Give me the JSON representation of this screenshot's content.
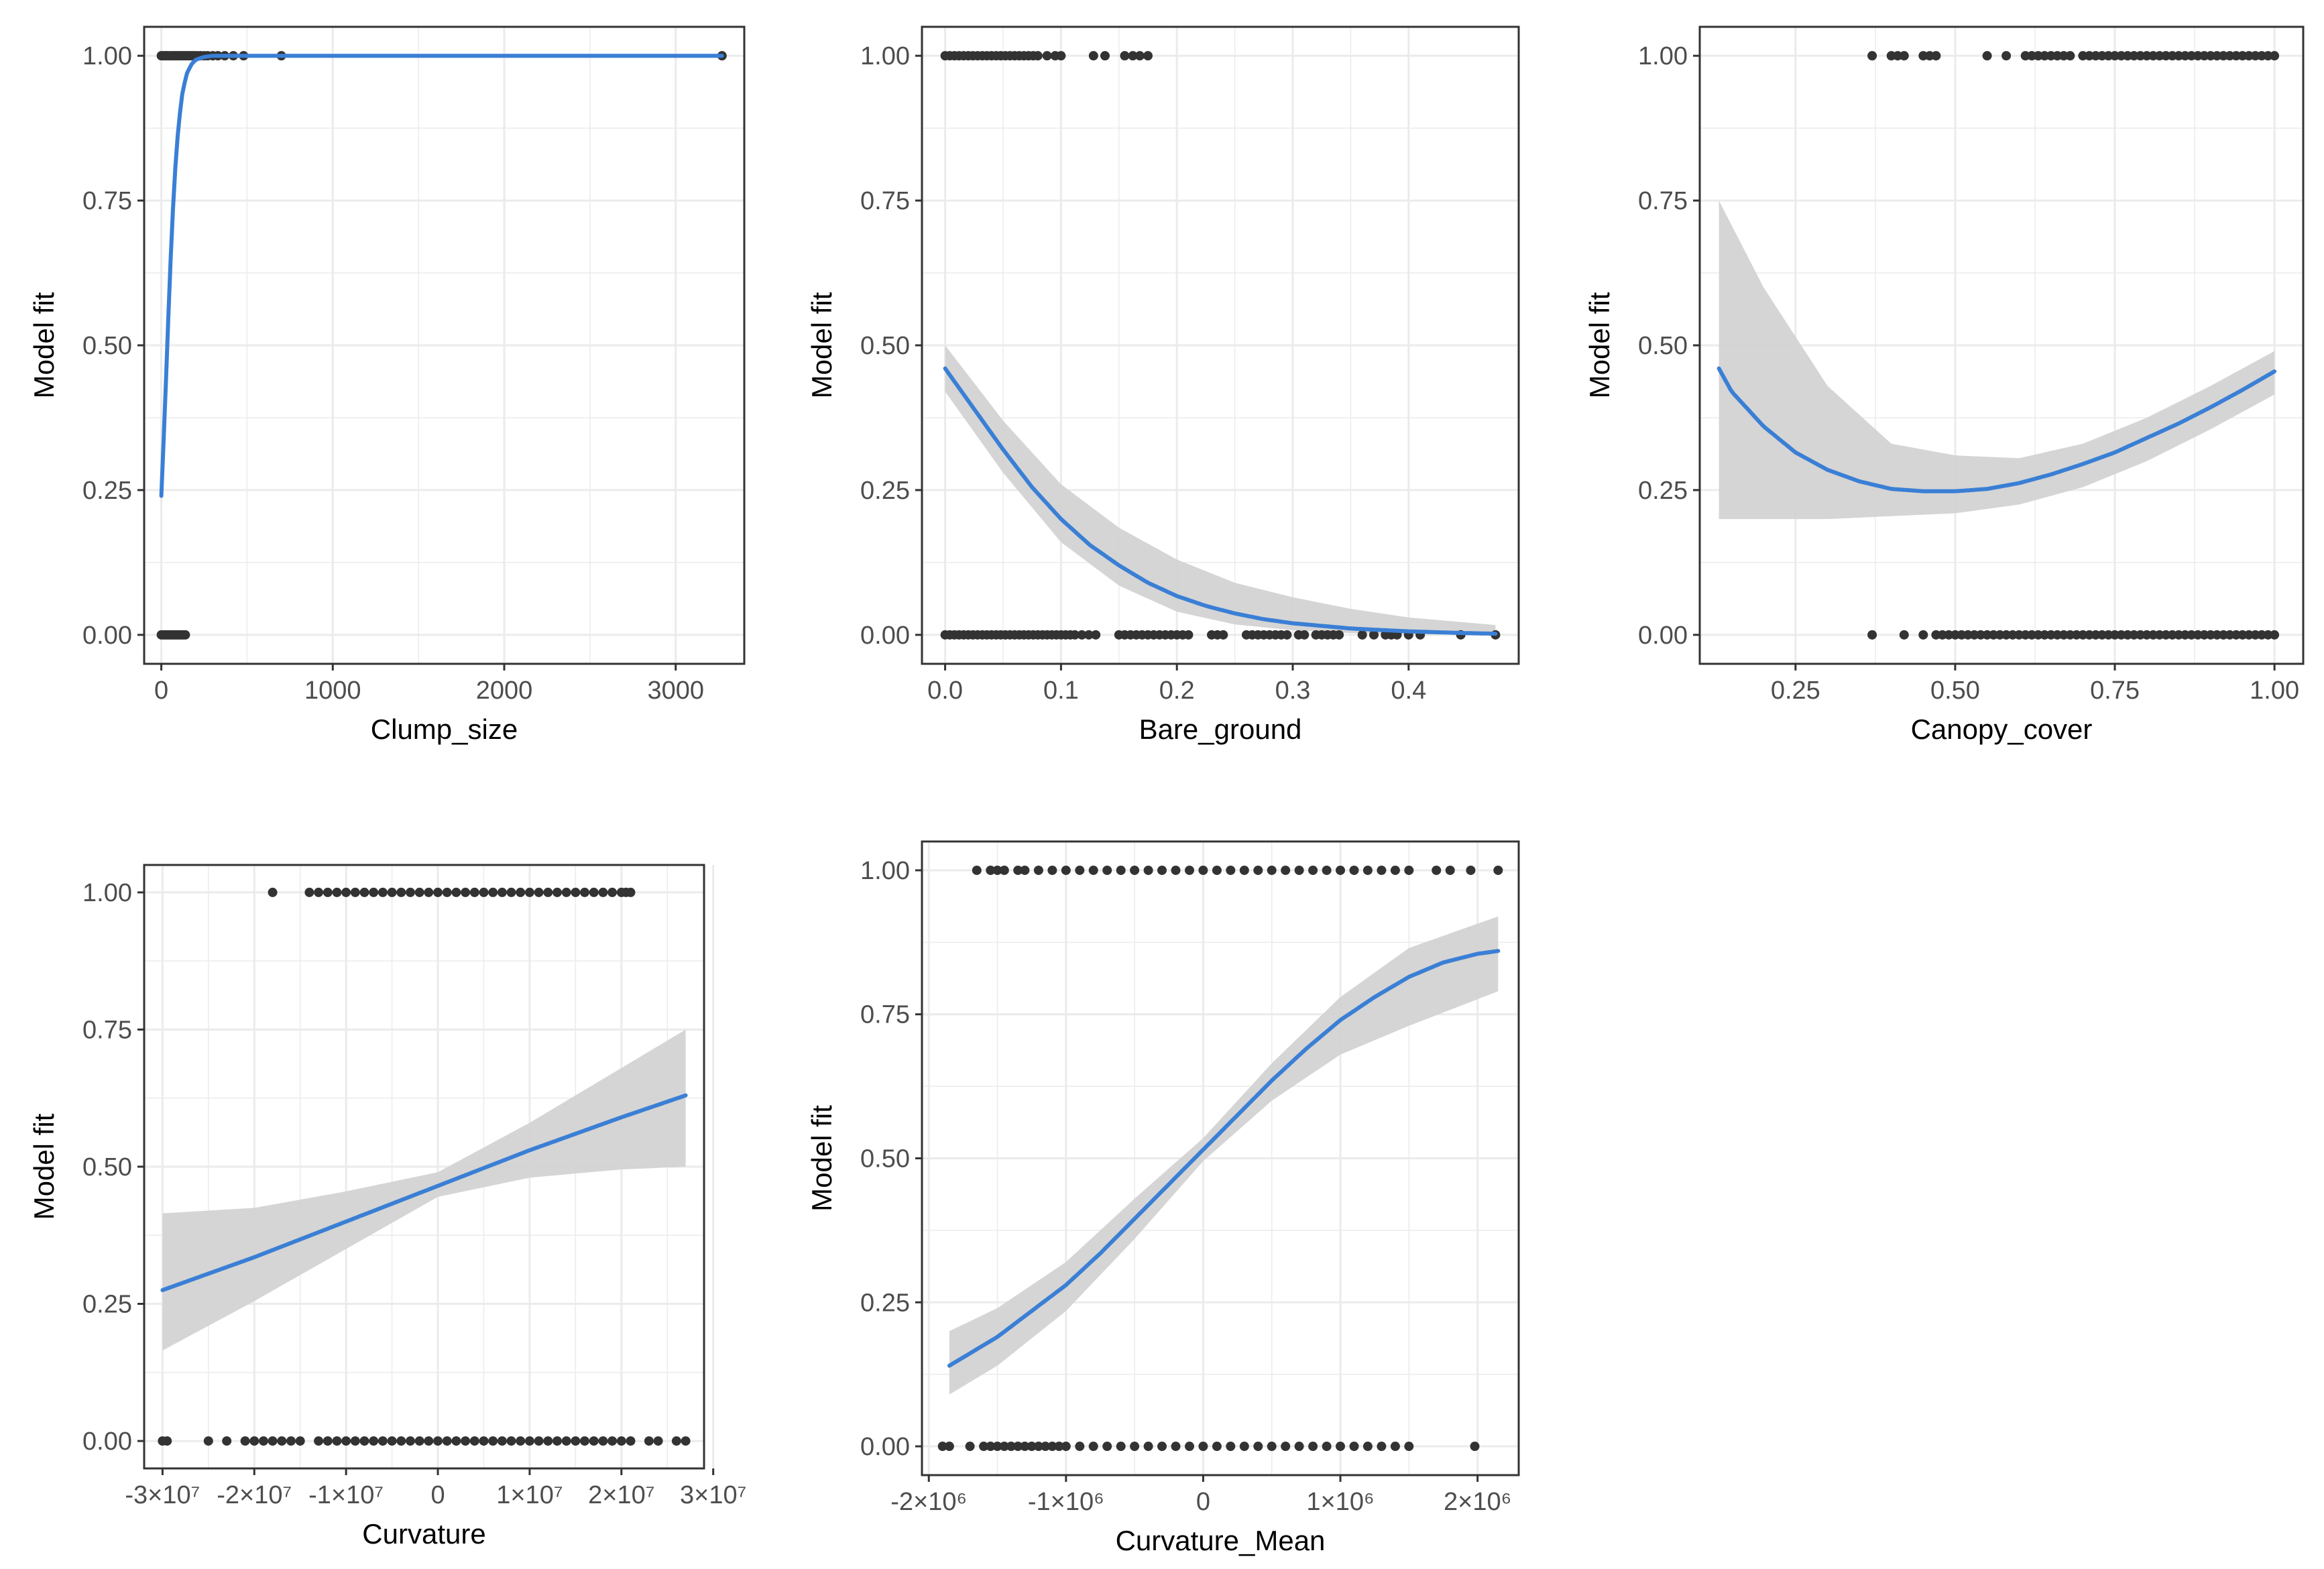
{
  "figure": {
    "background": "#ffffff",
    "line_color": "#3a7fd5",
    "ribbon_color": "#d3d3d3",
    "point_color": "#333333",
    "grid_color": "#ebebeb"
  },
  "chart_data": [
    {
      "id": "clump",
      "type": "line",
      "subtype": "logistic regression fit with confidence band and observed points",
      "xlabel": "Clump_size",
      "ylabel": "Model fit",
      "xlim": [
        -100,
        3400
      ],
      "ylim": [
        -0.05,
        1.05
      ],
      "xticks": [
        0,
        1000,
        2000,
        3000
      ],
      "xtick_labels": [
        "0",
        "1000",
        "2000",
        "3000"
      ],
      "yticks": [
        0,
        0.25,
        0.5,
        0.75,
        1
      ],
      "ytick_labels": [
        "0.00",
        "0.25",
        "0.50",
        "0.75",
        "1.00"
      ],
      "fit": {
        "x": [
          0,
          25,
          50,
          75,
          100,
          125,
          150,
          175,
          200,
          250,
          300,
          400,
          600,
          1000,
          2000,
          3270
        ],
        "y": [
          0.24,
          0.42,
          0.62,
          0.78,
          0.88,
          0.94,
          0.97,
          0.985,
          0.993,
          0.998,
          1.0,
          1.0,
          1.0,
          1.0,
          1.0,
          1.0
        ]
      },
      "ribbon": {
        "x": [
          0,
          50,
          100,
          150,
          200,
          300,
          3270
        ],
        "lower": [
          0.22,
          0.6,
          0.87,
          0.965,
          0.99,
          1.0,
          1.0
        ],
        "upper": [
          0.26,
          0.64,
          0.89,
          0.975,
          0.995,
          1.0,
          1.0
        ]
      },
      "points_y1": [
        0,
        10,
        20,
        30,
        40,
        50,
        60,
        70,
        80,
        90,
        100,
        110,
        120,
        130,
        140,
        150,
        160,
        170,
        180,
        190,
        200,
        215,
        230,
        250,
        270,
        300,
        330,
        370,
        420,
        480,
        700,
        3270
      ],
      "points_y0": [
        0,
        10,
        20,
        30,
        40,
        50,
        60,
        70,
        80,
        90,
        100,
        110,
        120,
        130,
        140
      ]
    },
    {
      "id": "bare",
      "type": "line",
      "subtype": "logistic regression fit with confidence band and observed points",
      "xlabel": "Bare_ground",
      "ylabel": "Model fit",
      "xlim": [
        -0.02,
        0.495
      ],
      "ylim": [
        -0.05,
        1.05
      ],
      "xticks": [
        0,
        0.1,
        0.2,
        0.3,
        0.4
      ],
      "xtick_labels": [
        "0.0",
        "0.1",
        "0.2",
        "0.3",
        "0.4"
      ],
      "yticks": [
        0,
        0.25,
        0.5,
        0.75,
        1
      ],
      "ytick_labels": [
        "0.00",
        "0.25",
        "0.50",
        "0.75",
        "1.00"
      ],
      "fit": {
        "x": [
          0,
          0.025,
          0.05,
          0.075,
          0.1,
          0.125,
          0.15,
          0.175,
          0.2,
          0.225,
          0.25,
          0.275,
          0.3,
          0.35,
          0.4,
          0.45,
          0.475
        ],
        "y": [
          0.46,
          0.39,
          0.32,
          0.255,
          0.2,
          0.155,
          0.12,
          0.09,
          0.067,
          0.05,
          0.037,
          0.027,
          0.02,
          0.011,
          0.006,
          0.003,
          0.002
        ]
      },
      "ribbon": {
        "x": [
          0,
          0.05,
          0.1,
          0.15,
          0.2,
          0.25,
          0.3,
          0.35,
          0.4,
          0.475
        ],
        "lower": [
          0.42,
          0.28,
          0.16,
          0.085,
          0.04,
          0.018,
          0.008,
          0.003,
          0.001,
          0.0
        ],
        "upper": [
          0.5,
          0.37,
          0.26,
          0.185,
          0.13,
          0.09,
          0.065,
          0.045,
          0.03,
          0.017
        ]
      },
      "points_y1": [
        0,
        0.004,
        0.008,
        0.012,
        0.016,
        0.02,
        0.024,
        0.028,
        0.032,
        0.036,
        0.04,
        0.044,
        0.048,
        0.052,
        0.056,
        0.06,
        0.064,
        0.068,
        0.072,
        0.076,
        0.08,
        0.088,
        0.095,
        0.1,
        0.128,
        0.138,
        0.155,
        0.162,
        0.168,
        0.175
      ],
      "points_y0": [
        0,
        0.004,
        0.008,
        0.012,
        0.016,
        0.02,
        0.024,
        0.028,
        0.032,
        0.036,
        0.04,
        0.044,
        0.048,
        0.052,
        0.056,
        0.06,
        0.064,
        0.068,
        0.072,
        0.076,
        0.08,
        0.084,
        0.088,
        0.092,
        0.096,
        0.1,
        0.104,
        0.108,
        0.112,
        0.118,
        0.124,
        0.13,
        0.15,
        0.155,
        0.16,
        0.165,
        0.17,
        0.175,
        0.18,
        0.185,
        0.19,
        0.195,
        0.2,
        0.205,
        0.21,
        0.23,
        0.235,
        0.24,
        0.26,
        0.265,
        0.27,
        0.275,
        0.28,
        0.285,
        0.29,
        0.295,
        0.305,
        0.31,
        0.32,
        0.325,
        0.33,
        0.335,
        0.34,
        0.36,
        0.37,
        0.38,
        0.385,
        0.39,
        0.4,
        0.41,
        0.445,
        0.475
      ]
    },
    {
      "id": "canopy",
      "type": "line",
      "subtype": "logistic regression fit with confidence band and observed points",
      "xlabel": "Canopy_cover",
      "ylabel": "Model fit",
      "xlim": [
        0.1,
        1.045
      ],
      "ylim": [
        -0.05,
        1.05
      ],
      "xticks": [
        0.25,
        0.5,
        0.75,
        1
      ],
      "xtick_labels": [
        "0.25",
        "0.50",
        "0.75",
        "1.00"
      ],
      "yticks": [
        0,
        0.25,
        0.5,
        0.75,
        1
      ],
      "ytick_labels": [
        "0.00",
        "0.25",
        "0.50",
        "0.75",
        "1.00"
      ],
      "fit": {
        "x": [
          0.13,
          0.15,
          0.2,
          0.25,
          0.3,
          0.35,
          0.4,
          0.45,
          0.5,
          0.55,
          0.6,
          0.65,
          0.7,
          0.75,
          0.8,
          0.85,
          0.9,
          0.95,
          1.0
        ],
        "y": [
          0.46,
          0.42,
          0.36,
          0.315,
          0.285,
          0.265,
          0.252,
          0.248,
          0.248,
          0.252,
          0.262,
          0.277,
          0.295,
          0.315,
          0.34,
          0.365,
          0.393,
          0.423,
          0.455
        ]
      },
      "ribbon": {
        "x": [
          0.13,
          0.2,
          0.3,
          0.4,
          0.5,
          0.6,
          0.7,
          0.8,
          0.9,
          1.0
        ],
        "lower": [
          0.2,
          0.2,
          0.2,
          0.205,
          0.21,
          0.225,
          0.255,
          0.3,
          0.355,
          0.415
        ],
        "upper": [
          0.75,
          0.6,
          0.43,
          0.33,
          0.31,
          0.305,
          0.33,
          0.375,
          0.43,
          0.49
        ]
      },
      "points_y1": [
        0.37,
        0.4,
        0.41,
        0.42,
        0.45,
        0.46,
        0.47,
        0.55,
        0.58,
        0.61,
        0.62,
        0.63,
        0.64,
        0.65,
        0.66,
        0.67,
        0.68,
        0.7,
        0.71,
        0.72,
        0.73,
        0.74,
        0.75,
        0.76,
        0.77,
        0.78,
        0.79,
        0.8,
        0.81,
        0.82,
        0.83,
        0.84,
        0.85,
        0.86,
        0.87,
        0.88,
        0.89,
        0.9,
        0.91,
        0.92,
        0.93,
        0.94,
        0.95,
        0.96,
        0.97,
        0.98,
        0.99,
        1.0
      ],
      "points_y0": [
        0.37,
        0.42,
        0.45,
        0.47,
        0.48,
        0.49,
        0.5,
        0.51,
        0.52,
        0.53,
        0.54,
        0.55,
        0.56,
        0.57,
        0.58,
        0.59,
        0.6,
        0.61,
        0.62,
        0.63,
        0.64,
        0.65,
        0.66,
        0.67,
        0.68,
        0.69,
        0.7,
        0.71,
        0.72,
        0.73,
        0.74,
        0.75,
        0.76,
        0.77,
        0.78,
        0.79,
        0.8,
        0.81,
        0.82,
        0.83,
        0.84,
        0.85,
        0.86,
        0.87,
        0.88,
        0.89,
        0.9,
        0.91,
        0.92,
        0.93,
        0.94,
        0.95,
        0.96,
        0.97,
        0.98,
        0.99,
        1.0
      ]
    },
    {
      "id": "curvature",
      "type": "line",
      "subtype": "logistic regression fit with confidence band and observed points",
      "xlabel": "Curvature",
      "ylabel": "Model fit",
      "xlim": [
        -32000000,
        29000000
      ],
      "ylim": [
        -0.05,
        1.05
      ],
      "xticks": [
        -30000000,
        -20000000,
        -10000000,
        0,
        10000000,
        20000000,
        30000000
      ],
      "xtick_labels": [
        "-3×10⁷",
        "-2×10⁷",
        "-1×10⁷",
        "0",
        "1×10⁷",
        "2×10⁷",
        "3×10⁷"
      ],
      "yticks": [
        0,
        0.25,
        0.5,
        0.75,
        1
      ],
      "ytick_labels": [
        "0.00",
        "0.25",
        "0.50",
        "0.75",
        "1.00"
      ],
      "fit": {
        "x": [
          -30000000,
          -20000000,
          -10000000,
          0,
          10000000,
          20000000,
          27000000
        ],
        "y": [
          0.275,
          0.335,
          0.4,
          0.465,
          0.53,
          0.59,
          0.63
        ]
      },
      "ribbon": {
        "x": [
          -30000000,
          -20000000,
          -10000000,
          0,
          10000000,
          20000000,
          27000000
        ],
        "lower": [
          0.165,
          0.255,
          0.35,
          0.445,
          0.48,
          0.495,
          0.5
        ],
        "upper": [
          0.415,
          0.425,
          0.455,
          0.49,
          0.58,
          0.68,
          0.75
        ]
      },
      "points_y1": [
        -18000000,
        -14000000,
        -13000000,
        -12000000,
        -11000000,
        -10000000,
        -9000000,
        -8000000,
        -7000000,
        -6000000,
        -5000000,
        -4000000,
        -3000000,
        -2000000,
        -1000000,
        0,
        1000000,
        2000000,
        3000000,
        4000000,
        5000000,
        6000000,
        7000000,
        8000000,
        9000000,
        10000000,
        11000000,
        12000000,
        13000000,
        14000000,
        15000000,
        16000000,
        17000000,
        18000000,
        19000000,
        20000000,
        20500000,
        21000000
      ],
      "points_y0": [
        -30000000,
        -29500000,
        -25000000,
        -23000000,
        -21000000,
        -20000000,
        -19000000,
        -18000000,
        -17000000,
        -16000000,
        -15000000,
        -13000000,
        -12000000,
        -11000000,
        -10000000,
        -9000000,
        -8000000,
        -7000000,
        -6000000,
        -5000000,
        -4000000,
        -3000000,
        -2000000,
        -1000000,
        0,
        1000000,
        2000000,
        3000000,
        4000000,
        5000000,
        6000000,
        7000000,
        8000000,
        9000000,
        10000000,
        11000000,
        12000000,
        13000000,
        14000000,
        15000000,
        16000000,
        17000000,
        18000000,
        19000000,
        20000000,
        21000000,
        23000000,
        24000000,
        26000000,
        27000000
      ]
    },
    {
      "id": "curvature-mean",
      "type": "line",
      "subtype": "logistic regression fit with confidence band and observed points",
      "xlabel": "Curvature_Mean",
      "ylabel": "Model fit",
      "xlim": [
        -2050000,
        2300000
      ],
      "ylim": [
        -0.05,
        1.05
      ],
      "xticks": [
        -2000000,
        -1000000,
        0,
        1000000,
        2000000
      ],
      "xtick_labels": [
        "-2×10⁶",
        "-1×10⁶",
        "0",
        "1×10⁶",
        "2×10⁶"
      ],
      "yticks": [
        0,
        0.25,
        0.5,
        0.75,
        1
      ],
      "ytick_labels": [
        "0.00",
        "0.25",
        "0.50",
        "0.75",
        "1.00"
      ],
      "fit": {
        "x": [
          -1850000,
          -1500000,
          -1250000,
          -1000000,
          -750000,
          -500000,
          -250000,
          0,
          250000,
          500000,
          750000,
          1000000,
          1250000,
          1500000,
          1750000,
          2000000,
          2150000
        ],
        "y": [
          0.14,
          0.19,
          0.235,
          0.28,
          0.335,
          0.395,
          0.455,
          0.515,
          0.575,
          0.635,
          0.69,
          0.74,
          0.78,
          0.815,
          0.84,
          0.855,
          0.86
        ]
      },
      "ribbon": {
        "x": [
          -1850000,
          -1500000,
          -1000000,
          -500000,
          0,
          500000,
          1000000,
          1500000,
          2150000
        ],
        "lower": [
          0.09,
          0.14,
          0.235,
          0.36,
          0.495,
          0.6,
          0.68,
          0.73,
          0.79
        ],
        "upper": [
          0.2,
          0.24,
          0.32,
          0.43,
          0.535,
          0.665,
          0.78,
          0.865,
          0.92
        ]
      },
      "points_y1": [
        -1650000,
        -1550000,
        -1500000,
        -1450000,
        -1350000,
        -1300000,
        -1200000,
        -1100000,
        -1000000,
        -900000,
        -800000,
        -700000,
        -600000,
        -500000,
        -400000,
        -300000,
        -200000,
        -100000,
        0,
        100000,
        200000,
        300000,
        400000,
        500000,
        600000,
        700000,
        800000,
        900000,
        1000000,
        1100000,
        1200000,
        1300000,
        1400000,
        1500000,
        1700000,
        1800000,
        1950000,
        2150000
      ],
      "points_y0": [
        -1900000,
        -1850000,
        -1700000,
        -1600000,
        -1550000,
        -1500000,
        -1450000,
        -1400000,
        -1350000,
        -1300000,
        -1250000,
        -1200000,
        -1150000,
        -1100000,
        -1050000,
        -1000000,
        -900000,
        -800000,
        -700000,
        -600000,
        -500000,
        -400000,
        -300000,
        -200000,
        -100000,
        0,
        100000,
        200000,
        300000,
        400000,
        500000,
        600000,
        700000,
        800000,
        900000,
        1000000,
        1100000,
        1200000,
        1300000,
        1400000,
        1500000,
        1980000
      ]
    }
  ]
}
